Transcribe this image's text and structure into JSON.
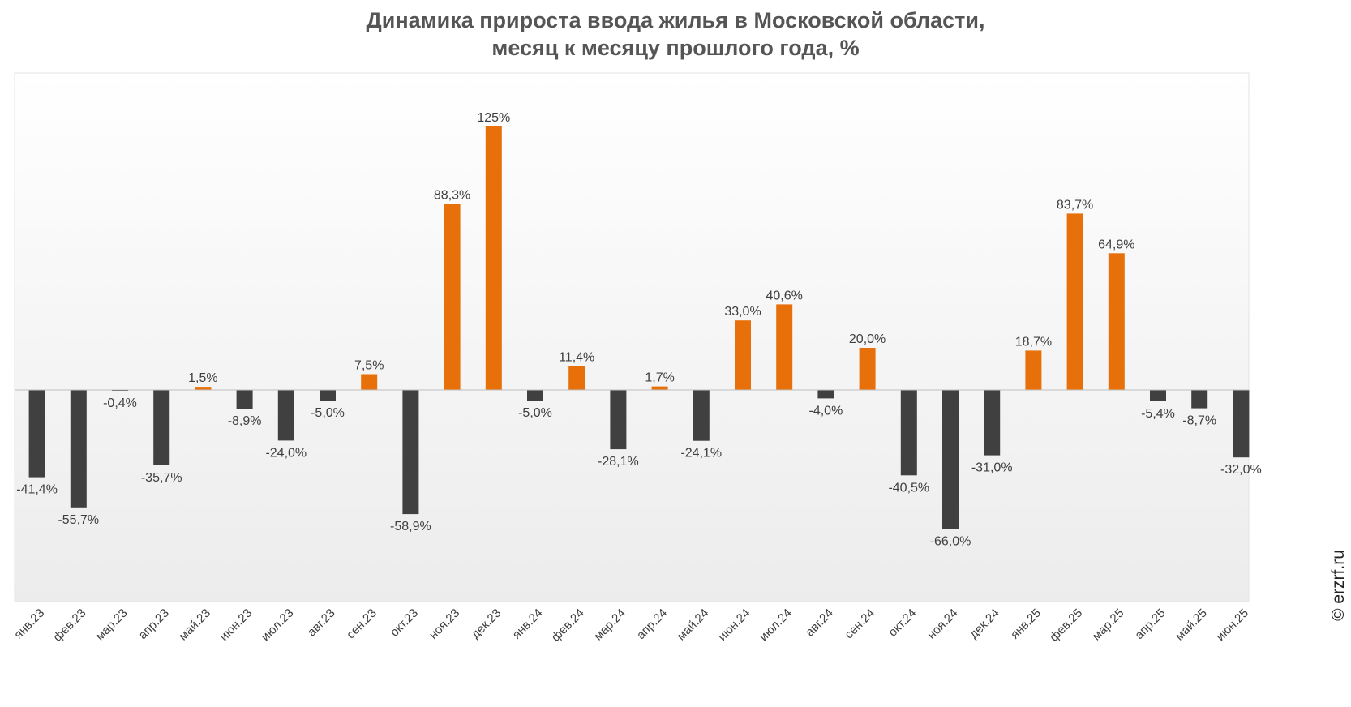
{
  "chart_data": {
    "type": "bar",
    "title_lines": [
      "Динамика прироста ввода жилья в Московской области,",
      "месяц к месяцу прошлого года, %"
    ],
    "categories": [
      "янв.23",
      "фев.23",
      "мар.23",
      "апр.23",
      "май.23",
      "июн.23",
      "июл.23",
      "авг.23",
      "сен.23",
      "окт.23",
      "ноя.23",
      "дек.23",
      "янв.24",
      "фев.24",
      "мар.24",
      "апр.24",
      "май.24",
      "июн.24",
      "июл.24",
      "авг.24",
      "сен.24",
      "окт.24",
      "ноя.24",
      "дек.24",
      "янв.25",
      "фев.25",
      "мар.25",
      "апр.25",
      "май.25",
      "июн.25"
    ],
    "values": [
      -41.4,
      -55.7,
      -0.4,
      -35.7,
      1.5,
      -8.9,
      -24.0,
      -5.0,
      7.5,
      -58.9,
      88.3,
      125,
      -5.0,
      11.4,
      -28.1,
      1.7,
      -24.1,
      33.0,
      40.6,
      -4.0,
      20.0,
      -40.5,
      -66.0,
      -31.0,
      18.7,
      83.7,
      64.9,
      -5.4,
      -8.7,
      -32.0
    ],
    "labels": [
      "-41,4%",
      "-55,7%",
      "-0,4%",
      "-35,7%",
      "1,5%",
      "-8,9%",
      "-24,0%",
      "-5,0%",
      "7,5%",
      "-58,9%",
      "88,3%",
      "125%",
      "-5,0%",
      "11,4%",
      "-28,1%",
      "1,7%",
      "-24,1%",
      "33,0%",
      "40,6%",
      "-4,0%",
      "20,0%",
      "-40,5%",
      "-66,0%",
      "-31,0%",
      "18,7%",
      "83,7%",
      "64,9%",
      "-5,4%",
      "-8,7%",
      "-32,0%"
    ],
    "colors": {
      "positive": "#E8700A",
      "negative": "#404040",
      "label": "#404040",
      "axis": "#BFBFBF"
    },
    "xlabel": "",
    "ylabel": "",
    "y_axis_visible": false,
    "grid": false,
    "legend": "none"
  },
  "watermark": "© erzrf.ru"
}
